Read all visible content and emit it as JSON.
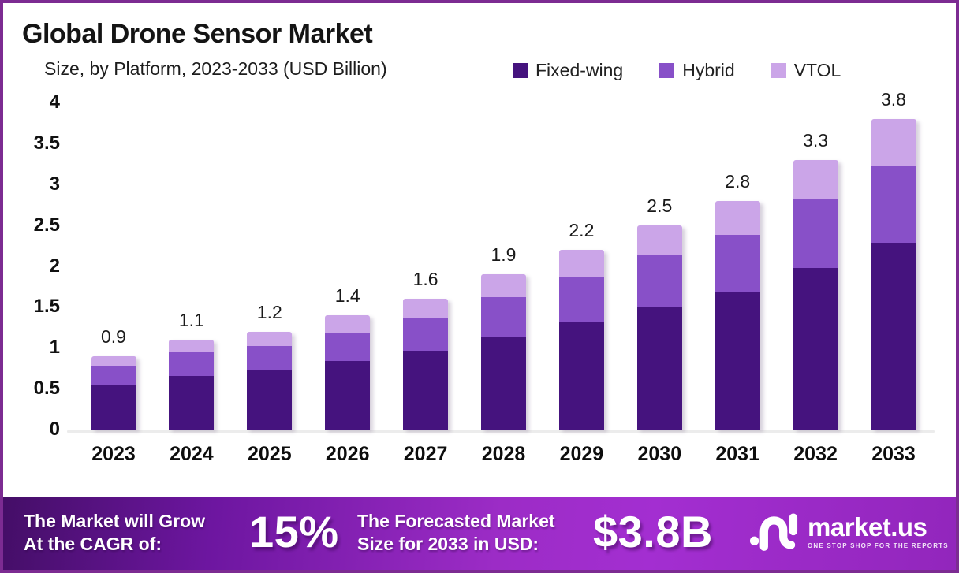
{
  "header": {
    "title": "Global Drone Sensor Market",
    "subtitle": "Size, by Platform, 2023-2033 (USD Billion)"
  },
  "legend": [
    {
      "label": "Fixed-wing",
      "color": "#45137e"
    },
    {
      "label": "Hybrid",
      "color": "#8850c8"
    },
    {
      "label": "VTOL",
      "color": "#cba5e8"
    }
  ],
  "chart_data": {
    "type": "bar",
    "stacked": true,
    "title": "Global Drone Sensor Market Size, by Platform, 2023-2033 (USD Billion)",
    "xlabel": "",
    "ylabel": "",
    "categories": [
      "2023",
      "2024",
      "2025",
      "2026",
      "2027",
      "2028",
      "2029",
      "2030",
      "2031",
      "2032",
      "2033"
    ],
    "series": [
      {
        "name": "Fixed-wing",
        "color": "#45137e",
        "values": [
          0.54,
          0.66,
          0.72,
          0.84,
          0.96,
          1.14,
          1.32,
          1.5,
          1.68,
          1.98,
          2.28
        ]
      },
      {
        "name": "Hybrid",
        "color": "#8850c8",
        "values": [
          0.23,
          0.28,
          0.3,
          0.35,
          0.4,
          0.48,
          0.55,
          0.63,
          0.7,
          0.83,
          0.95
        ]
      },
      {
        "name": "VTOL",
        "color": "#cba5e8",
        "values": [
          0.13,
          0.16,
          0.18,
          0.21,
          0.24,
          0.28,
          0.33,
          0.37,
          0.42,
          0.49,
          0.57
        ]
      }
    ],
    "totals": [
      0.9,
      1.1,
      1.2,
      1.4,
      1.6,
      1.9,
      2.2,
      2.5,
      2.8,
      3.3,
      3.8
    ],
    "total_labels": [
      "0.9",
      "1.1",
      "1.2",
      "1.4",
      "1.6",
      "1.9",
      "2.2",
      "2.5",
      "2.8",
      "3.3",
      "3.8"
    ],
    "ylim": [
      0,
      4
    ],
    "yticks": [
      0,
      0.5,
      1,
      1.5,
      2,
      2.5,
      3,
      3.5,
      4
    ],
    "ytick_labels": [
      "0",
      "0.5",
      "1",
      "1.5",
      "2",
      "2.5",
      "3",
      "3.5",
      "4"
    ],
    "grid": false,
    "legend_position": "top-right"
  },
  "footer": {
    "cagr_label_line1": "The Market will Grow",
    "cagr_label_line2": "At the CAGR of:",
    "cagr_value": "15%",
    "forecast_label_line1": "The Forecasted Market",
    "forecast_label_line2": "Size for 2033 in USD:",
    "forecast_value": "$3.8B",
    "logo_text": "market.us",
    "logo_tagline": "ONE STOP SHOP FOR THE REPORTS"
  },
  "colors": {
    "border": "#7c2b92",
    "background": "#ffffff",
    "fixed_wing": "#45137e",
    "hybrid": "#8850c8",
    "vtol": "#cba5e8",
    "axis_line": "#ececec",
    "footer_gradient_start": "#440e67",
    "footer_gradient_bright": "#a32ed1",
    "text": "#141414"
  }
}
